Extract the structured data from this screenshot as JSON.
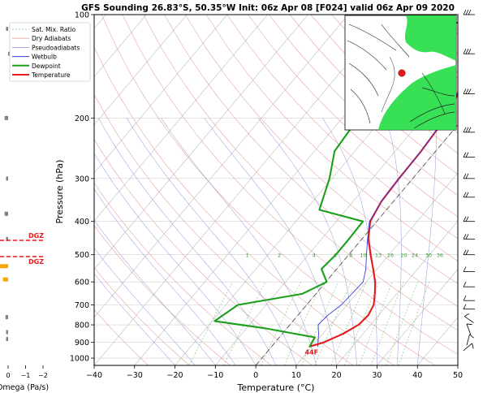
{
  "chart_data": {
    "type": "line",
    "title": "GFS Sounding 26.83°S, 50.35°W Init: 06z Apr 08 [F024] valid 06z Apr 09 2020",
    "xlabel": "Temperature (°C)",
    "ylabel": "Pressure (hPa)",
    "xlim": [
      -40,
      50
    ],
    "ylim": [
      1050,
      100
    ],
    "y_scale": "log",
    "x_ticks": [
      -40,
      -30,
      -20,
      -10,
      0,
      10,
      20,
      30,
      40,
      50
    ],
    "y_ticks": [
      100,
      200,
      300,
      400,
      500,
      600,
      700,
      800,
      900,
      1000
    ],
    "legend_position": "top-left",
    "legend": [
      "Sat. Mix. Ratio",
      "Dry Adiabats",
      "Pseudoadiabats",
      "Wetbulb",
      "Dewpoint",
      "Temperature"
    ],
    "series": [
      {
        "name": "Temperature",
        "color": "#e41a1c",
        "points": [
          [
            9.4,
            925
          ],
          [
            12,
            900
          ],
          [
            15,
            850
          ],
          [
            17,
            800
          ],
          [
            17.4,
            750
          ],
          [
            16.6,
            700
          ],
          [
            14.6,
            650
          ],
          [
            12.2,
            600
          ],
          [
            9,
            550
          ],
          [
            5.4,
            500
          ],
          [
            1.6,
            450
          ],
          [
            -1.6,
            400
          ],
          [
            -3,
            350
          ],
          [
            -3.4,
            300
          ],
          [
            -3.6,
            250
          ],
          [
            -4.4,
            200
          ],
          [
            -6.4,
            170
          ],
          [
            -9.2,
            150
          ],
          [
            -10.6,
            130
          ],
          [
            -13,
            110
          ],
          [
            -14.6,
            100
          ]
        ]
      },
      {
        "name": "Dewpoint",
        "color": "#1aa01a",
        "points": [
          [
            9.4,
            925
          ],
          [
            8.8,
            870
          ],
          [
            -5,
            820
          ],
          [
            -19.4,
            780
          ],
          [
            -17,
            700
          ],
          [
            -3.4,
            650
          ],
          [
            0.2,
            600
          ],
          [
            -3.8,
            550
          ],
          [
            -3.2,
            500
          ],
          [
            -3.2,
            450
          ],
          [
            -3.4,
            400
          ],
          [
            -16.6,
            370
          ],
          [
            -20.6,
            300
          ],
          [
            -25,
            250
          ],
          [
            -26,
            200
          ],
          [
            -26.4,
            150
          ],
          [
            -25,
            130
          ],
          [
            -23.2,
            110
          ],
          [
            -19,
            100
          ]
        ]
      },
      {
        "name": "Wetbulb",
        "color": "#3b3bdb",
        "points": [
          [
            11.4,
            925
          ],
          [
            9,
            850
          ],
          [
            7,
            800
          ],
          [
            7.4,
            750
          ],
          [
            8.6,
            700
          ],
          [
            9.2,
            600
          ],
          [
            7.2,
            550
          ],
          [
            4.4,
            500
          ],
          [
            1.4,
            450
          ],
          [
            -1.8,
            400
          ],
          [
            -3,
            350
          ],
          [
            -3.4,
            300
          ],
          [
            -3.6,
            250
          ],
          [
            -4.6,
            200
          ],
          [
            -6.6,
            170
          ],
          [
            -9.2,
            150
          ],
          [
            -10.6,
            130
          ],
          [
            -13,
            110
          ],
          [
            -14.6,
            100
          ]
        ]
      }
    ],
    "mixing_ratio_labels": [
      "1",
      "2",
      "4",
      "6",
      "8",
      "10",
      "13",
      "16",
      "20",
      "24",
      "30",
      "36"
    ],
    "surface_label": "44F",
    "dgz_label": "DGZ",
    "dgz_layer_hpa": [
      450,
      500
    ],
    "omega": {
      "label": "Omega (Pa/s)",
      "ticks": [
        "0",
        "−1",
        "−2"
      ],
      "values": [
        [
          0.1,
          110
        ],
        [
          -0.1,
          130
        ],
        [
          0.2,
          200
        ],
        [
          0.05,
          300
        ],
        [
          0.2,
          380
        ],
        [
          0.05,
          450
        ],
        [
          0.6,
          540
        ],
        [
          0.3,
          590
        ],
        [
          0.15,
          760
        ],
        [
          0.1,
          840
        ],
        [
          0.1,
          880
        ]
      ]
    },
    "colors": {
      "temperature": "#e41a1c",
      "dewpoint": "#1aa01a",
      "wetbulb": "#3b3bdb",
      "dgz": "#e41a1c",
      "omega_negative": "#f5a800",
      "omega_positive": "#808080"
    }
  }
}
